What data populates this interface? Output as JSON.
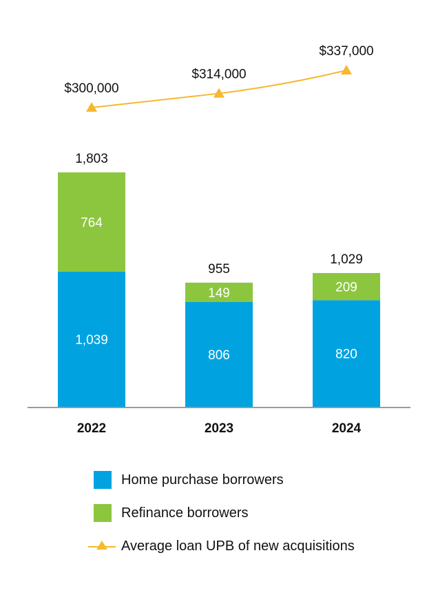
{
  "chart_data": {
    "type": "bar",
    "stacked": true,
    "categories": [
      "2022",
      "2023",
      "2024"
    ],
    "series": [
      {
        "name": "Home purchase borrowers",
        "values": [
          1039,
          806,
          820
        ],
        "labels": [
          "1,039",
          "806",
          "820"
        ],
        "color": "#00a3e0"
      },
      {
        "name": "Refinance borrowers",
        "values": [
          764,
          149,
          209
        ],
        "labels": [
          "764",
          "149",
          "209"
        ],
        "color": "#8cc63f"
      }
    ],
    "totals": [
      1803,
      955,
      1029
    ],
    "total_labels": [
      "1,803",
      "955",
      "1,029"
    ],
    "line_series": {
      "name": "Average loan UPB of new acquisitions",
      "values": [
        300000,
        314000,
        337000
      ],
      "labels": [
        "$300,000",
        "$314,000",
        "$337,000"
      ],
      "color": "#f5b82e"
    },
    "title": "",
    "xlabel": "",
    "ylabel": "",
    "ylim": [
      0,
      1803
    ],
    "grid": false,
    "legend_position": "bottom"
  },
  "legend": {
    "items": [
      {
        "label": "Home purchase borrowers",
        "color": "#00a3e0"
      },
      {
        "label": "Refinance borrowers",
        "color": "#8cc63f"
      },
      {
        "label": "Average loan UPB of new acquisitions",
        "color": "#f5b82e"
      }
    ]
  }
}
